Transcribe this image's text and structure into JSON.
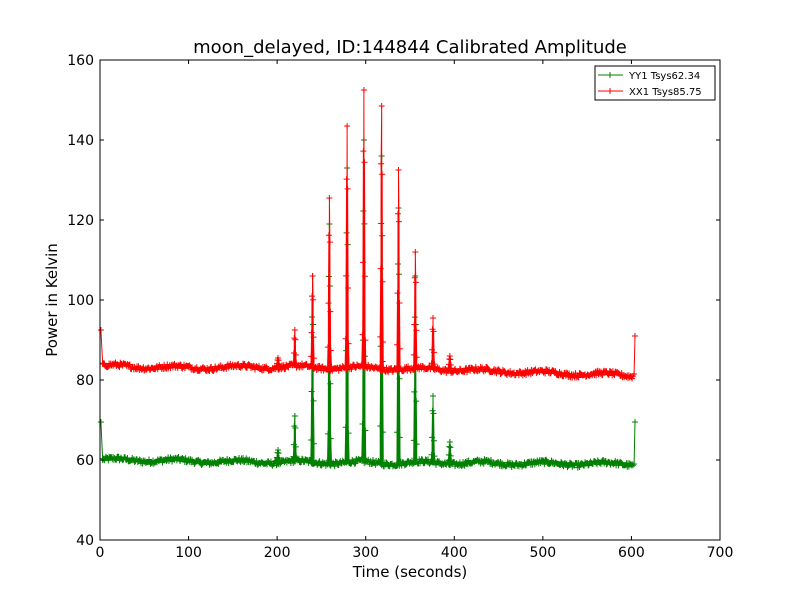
{
  "chart_data": {
    "type": "line",
    "title": "moon_delayed, ID:144844 Calibrated Amplitude",
    "xlabel": "Time (seconds)",
    "ylabel": "Power in Kelvin",
    "xlim": [
      0,
      700
    ],
    "ylim": [
      40,
      160
    ],
    "xticks": [
      "0",
      "100",
      "200",
      "300",
      "400",
      "500",
      "600",
      "700"
    ],
    "yticks": [
      "40",
      "60",
      "80",
      "100",
      "120",
      "140",
      "160"
    ],
    "grid": false,
    "legend_position": "top-right",
    "marker": "+",
    "series": [
      {
        "name": "YY1 Tsys62.34",
        "color": "#008000",
        "baseline": [
          [
            2,
            60
          ],
          [
            50,
            60
          ],
          [
            100,
            59.7
          ],
          [
            200,
            59.5
          ],
          [
            300,
            59.3
          ],
          [
            400,
            59.3
          ],
          [
            500,
            59.1
          ],
          [
            600,
            59.0
          ]
        ],
        "peaks": [
          [
            201,
            62.5
          ],
          [
            220,
            71
          ],
          [
            240,
            106
          ],
          [
            259,
            119
          ],
          [
            279,
            133
          ],
          [
            298,
            140
          ],
          [
            318,
            136
          ],
          [
            337,
            123
          ],
          [
            356,
            106
          ],
          [
            376,
            76
          ],
          [
            395,
            64.5
          ]
        ],
        "start": [
          [
            1,
            69.5
          ],
          [
            3,
            60
          ]
        ],
        "end": [
          [
            603,
            59
          ],
          [
            604,
            69.5
          ]
        ]
      },
      {
        "name": "XX1 Tsys85.75",
        "color": "#ff0000",
        "baseline": [
          [
            2,
            83.5
          ],
          [
            50,
            83.3
          ],
          [
            100,
            83.1
          ],
          [
            200,
            83.3
          ],
          [
            300,
            83.0
          ],
          [
            400,
            82.6
          ],
          [
            500,
            81.8
          ],
          [
            600,
            81.2
          ]
        ],
        "peaks": [
          [
            201,
            85.5
          ],
          [
            220,
            92.5
          ],
          [
            240,
            106
          ],
          [
            259,
            125.5
          ],
          [
            279,
            143.5
          ],
          [
            298,
            152.5
          ],
          [
            318,
            148.5
          ],
          [
            337,
            132.5
          ],
          [
            356,
            112
          ],
          [
            376,
            95.5
          ],
          [
            395,
            86
          ]
        ],
        "start": [
          [
            1,
            92.5
          ],
          [
            3,
            84
          ]
        ],
        "end": [
          [
            603,
            81.5
          ],
          [
            604,
            91
          ]
        ]
      }
    ]
  }
}
